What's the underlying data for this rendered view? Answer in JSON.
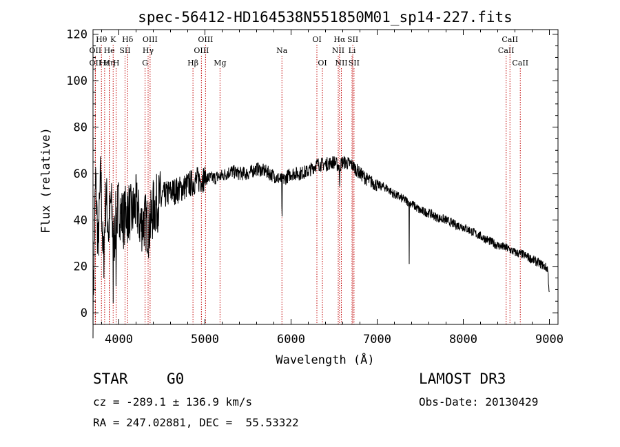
{
  "chart_data": {
    "type": "line",
    "title": "spec-56412-HD164538N551850M01_sp14-227.fits",
    "xlabel": "Wavelength (Å)",
    "ylabel": "Flux (relative)",
    "xlim": [
      3700,
      9100
    ],
    "ylim": [
      -5,
      122
    ],
    "xticks": [
      4000,
      5000,
      6000,
      7000,
      8000,
      9000
    ],
    "yticks": [
      0,
      20,
      40,
      60,
      80,
      100,
      120
    ],
    "grid": false,
    "series": [
      {
        "x": [
          3700,
          3730,
          3760,
          3790,
          3820,
          3850,
          3880,
          3910,
          3940,
          3970,
          4000,
          4050,
          4100,
          4150,
          4200,
          4250,
          4300,
          4350,
          4400,
          4500,
          4600,
          4700,
          4800,
          4900,
          5000,
          5100,
          5200,
          5300,
          5400,
          5500,
          5600,
          5700,
          5800,
          5900,
          6000,
          6100,
          6200,
          6300,
          6400,
          6500,
          6560,
          6600,
          6700,
          6800,
          6900,
          7000,
          7100,
          7200,
          7300,
          7400,
          7500,
          7600,
          7700,
          7800,
          7900,
          8000,
          8100,
          8200,
          8300,
          8400,
          8500,
          8600,
          8700,
          8800,
          8900,
          8980,
          9000
        ],
        "y": [
          2,
          58,
          28,
          60,
          20,
          52,
          35,
          48,
          30,
          42,
          46,
          40,
          45,
          42,
          47,
          38,
          40,
          36,
          45,
          50,
          52,
          53,
          55,
          57,
          58,
          58,
          59,
          61,
          60,
          60,
          62,
          61,
          59,
          57,
          60,
          60,
          61,
          64,
          64,
          65,
          63,
          65,
          64,
          60,
          57,
          55,
          54,
          51,
          49,
          47,
          44,
          43,
          41,
          40,
          38,
          37,
          35,
          33,
          31,
          29,
          28,
          26,
          25,
          23,
          21,
          19,
          8
        ]
      }
    ],
    "lines": [
      {
        "label": "OII",
        "x": 3727,
        "row": 2
      },
      {
        "label": "OII",
        "x": 3727,
        "row": 3
      },
      {
        "label": "Hθ",
        "x": 3798,
        "row": 1
      },
      {
        "label": "Hε",
        "x": 3835,
        "row": 3
      },
      {
        "label": "He",
        "x": 3889,
        "row": 2
      },
      {
        "label": "Hη",
        "x": 3889,
        "row": 3
      },
      {
        "label": "K",
        "x": 3934,
        "row": 1
      },
      {
        "label": "H",
        "x": 3969,
        "row": 3
      },
      {
        "label": "SII",
        "x": 4072,
        "row": 2
      },
      {
        "label": "Hδ",
        "x": 4102,
        "row": 1
      },
      {
        "label": "OIII",
        "x": 4363,
        "row": 1
      },
      {
        "label": "Hγ",
        "x": 4340,
        "row": 2
      },
      {
        "label": "G",
        "x": 4305,
        "row": 3
      },
      {
        "label": "Hβ",
        "x": 4861,
        "row": 3
      },
      {
        "label": "OIII",
        "x": 5007,
        "row": 1
      },
      {
        "label": "OIII",
        "x": 4959,
        "row": 2
      },
      {
        "label": "Mg",
        "x": 5175,
        "row": 3
      },
      {
        "label": "Na",
        "x": 5894,
        "row": 2
      },
      {
        "label": "OI",
        "x": 6300,
        "row": 1
      },
      {
        "label": "OI",
        "x": 6364,
        "row": 3
      },
      {
        "label": "Hα",
        "x": 6563,
        "row": 1
      },
      {
        "label": "NII",
        "x": 6548,
        "row": 2
      },
      {
        "label": "NII",
        "x": 6584,
        "row": 3
      },
      {
        "label": "SII",
        "x": 6717,
        "row": 1
      },
      {
        "label": "Li",
        "x": 6708,
        "row": 2
      },
      {
        "label": "SII",
        "x": 6731,
        "row": 3
      },
      {
        "label": "CaII",
        "x": 8498,
        "row": 2
      },
      {
        "label": "CaII",
        "x": 8542,
        "row": 1
      },
      {
        "label": "CaII",
        "x": 8662,
        "row": 3
      }
    ],
    "line_color": "#c00000"
  },
  "info": {
    "object_type": "STAR",
    "subclass": "G0",
    "survey": "LAMOST DR3",
    "cz": "cz = -289.1 ± 136.9 km/s",
    "obs_date": "Obs-Date: 20130429",
    "coords": "RA = 247.02881, DEC =  55.53322"
  }
}
